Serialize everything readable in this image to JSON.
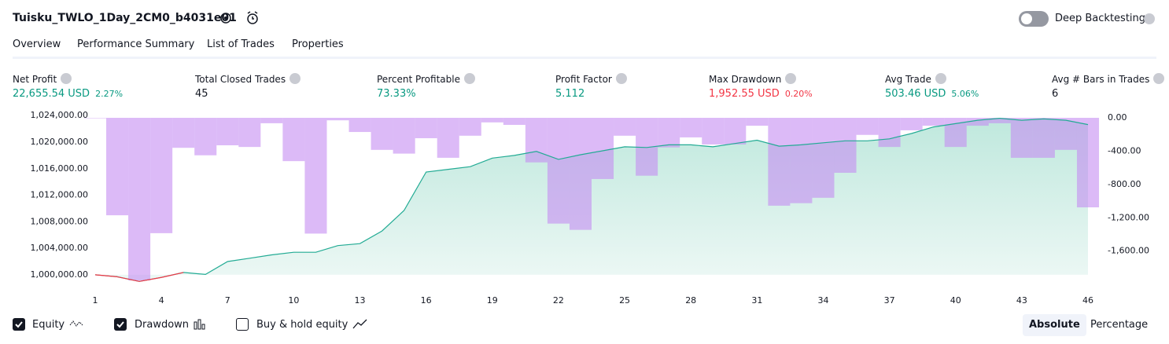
{
  "header": {
    "title": "Tuisku_TWLO_1Day_2CM0_b4031e01",
    "deep_backtesting": "Deep Backtesting"
  },
  "tabs": [
    "Overview",
    "Performance Summary",
    "List of Trades",
    "Properties"
  ],
  "active_tab": 0,
  "metrics": [
    {
      "label": "Net Profit",
      "value": "22,655.54 USD",
      "percent": "2.27%",
      "tone": "positive"
    },
    {
      "label": "Total Closed Trades",
      "value": "45",
      "tone": "neutral"
    },
    {
      "label": "Percent Profitable",
      "value": "73.33%",
      "tone": "positive"
    },
    {
      "label": "Profit Factor",
      "value": "5.112",
      "tone": "positive"
    },
    {
      "label": "Max Drawdown",
      "value": "1,952.55 USD",
      "percent": "0.20%",
      "tone": "negative"
    },
    {
      "label": "Avg Trade",
      "value": "503.46 USD",
      "percent": "5.06%",
      "tone": "positive"
    },
    {
      "label": "Avg # Bars in Trades",
      "value": "6",
      "tone": "neutral"
    }
  ],
  "chart_data": {
    "type": "combo",
    "x": [
      1,
      2,
      3,
      4,
      5,
      6,
      7,
      8,
      9,
      10,
      11,
      12,
      13,
      14,
      15,
      16,
      17,
      18,
      19,
      20,
      21,
      22,
      23,
      24,
      25,
      26,
      27,
      28,
      29,
      30,
      31,
      32,
      33,
      34,
      35,
      36,
      37,
      38,
      39,
      40,
      41,
      42,
      43,
      44,
      45,
      46
    ],
    "xlim": [
      1,
      46
    ],
    "xticks": [
      1,
      4,
      7,
      10,
      13,
      16,
      19,
      22,
      25,
      28,
      31,
      34,
      37,
      40,
      43,
      46
    ],
    "ylim": [
      998800,
      1024500
    ],
    "yticks": [
      {
        "value": 1024000,
        "label": "1,024,000.00"
      },
      {
        "value": 1020000,
        "label": "1,020,000.00"
      },
      {
        "value": 1016000,
        "label": "1,016,000.00"
      },
      {
        "value": 1012000,
        "label": "1,012,000.00"
      },
      {
        "value": 1008000,
        "label": "1,008,000.00"
      },
      {
        "value": 1004000,
        "label": "1,004,000.00"
      },
      {
        "value": 1000000,
        "label": "1,000,000.00"
      }
    ],
    "y2lim": [
      -1980,
      66
    ],
    "y2ticks": [
      {
        "value": 0,
        "label": "0.00"
      },
      {
        "value": -400,
        "label": "-400.00"
      },
      {
        "value": -800,
        "label": "-800.00"
      },
      {
        "value": -1200,
        "label": "-1,200.00"
      },
      {
        "value": -1600,
        "label": "-1,600.00"
      }
    ],
    "series": [
      {
        "name": "Equity",
        "checked": true,
        "color": "#22ab94",
        "negative_color": "#f23645",
        "values": [
          1000000,
          999700,
          999000,
          999600,
          1000350,
          1000050,
          1002000,
          1002500,
          1003000,
          1003400,
          1003400,
          1004400,
          1004700,
          1006600,
          1009700,
          1015500,
          1015900,
          1016300,
          1017600,
          1018000,
          1018600,
          1017400,
          1018100,
          1018700,
          1019300,
          1019200,
          1019600,
          1019600,
          1019300,
          1019800,
          1020300,
          1019400,
          1019600,
          1019900,
          1020200,
          1020200,
          1020500,
          1021300,
          1022300,
          1022800,
          1023300,
          1023600,
          1023300,
          1023500,
          1023300,
          1022655.54
        ]
      },
      {
        "name": "Drawdown",
        "checked": true,
        "axis": "y2",
        "color": "#c48cf2",
        "values": [
          -5,
          -1170,
          -1952.55,
          -1385,
          -360,
          -450,
          -330,
          -350,
          -65,
          -520,
          -1390,
          -30,
          -170,
          -385,
          -430,
          -245,
          -480,
          -215,
          -55,
          -85,
          -535,
          -1270,
          -1345,
          -735,
          -215,
          -695,
          -355,
          -235,
          -320,
          -320,
          -95,
          -1055,
          -1025,
          -960,
          -660,
          -205,
          -350,
          -150,
          -95,
          -350,
          -95,
          -65,
          -480,
          -480,
          -385,
          -1075
        ]
      }
    ],
    "legend_extra": {
      "name": "Buy & hold equity",
      "checked": false
    }
  },
  "modes": [
    "Absolute",
    "Percentage"
  ],
  "active_mode": 0
}
